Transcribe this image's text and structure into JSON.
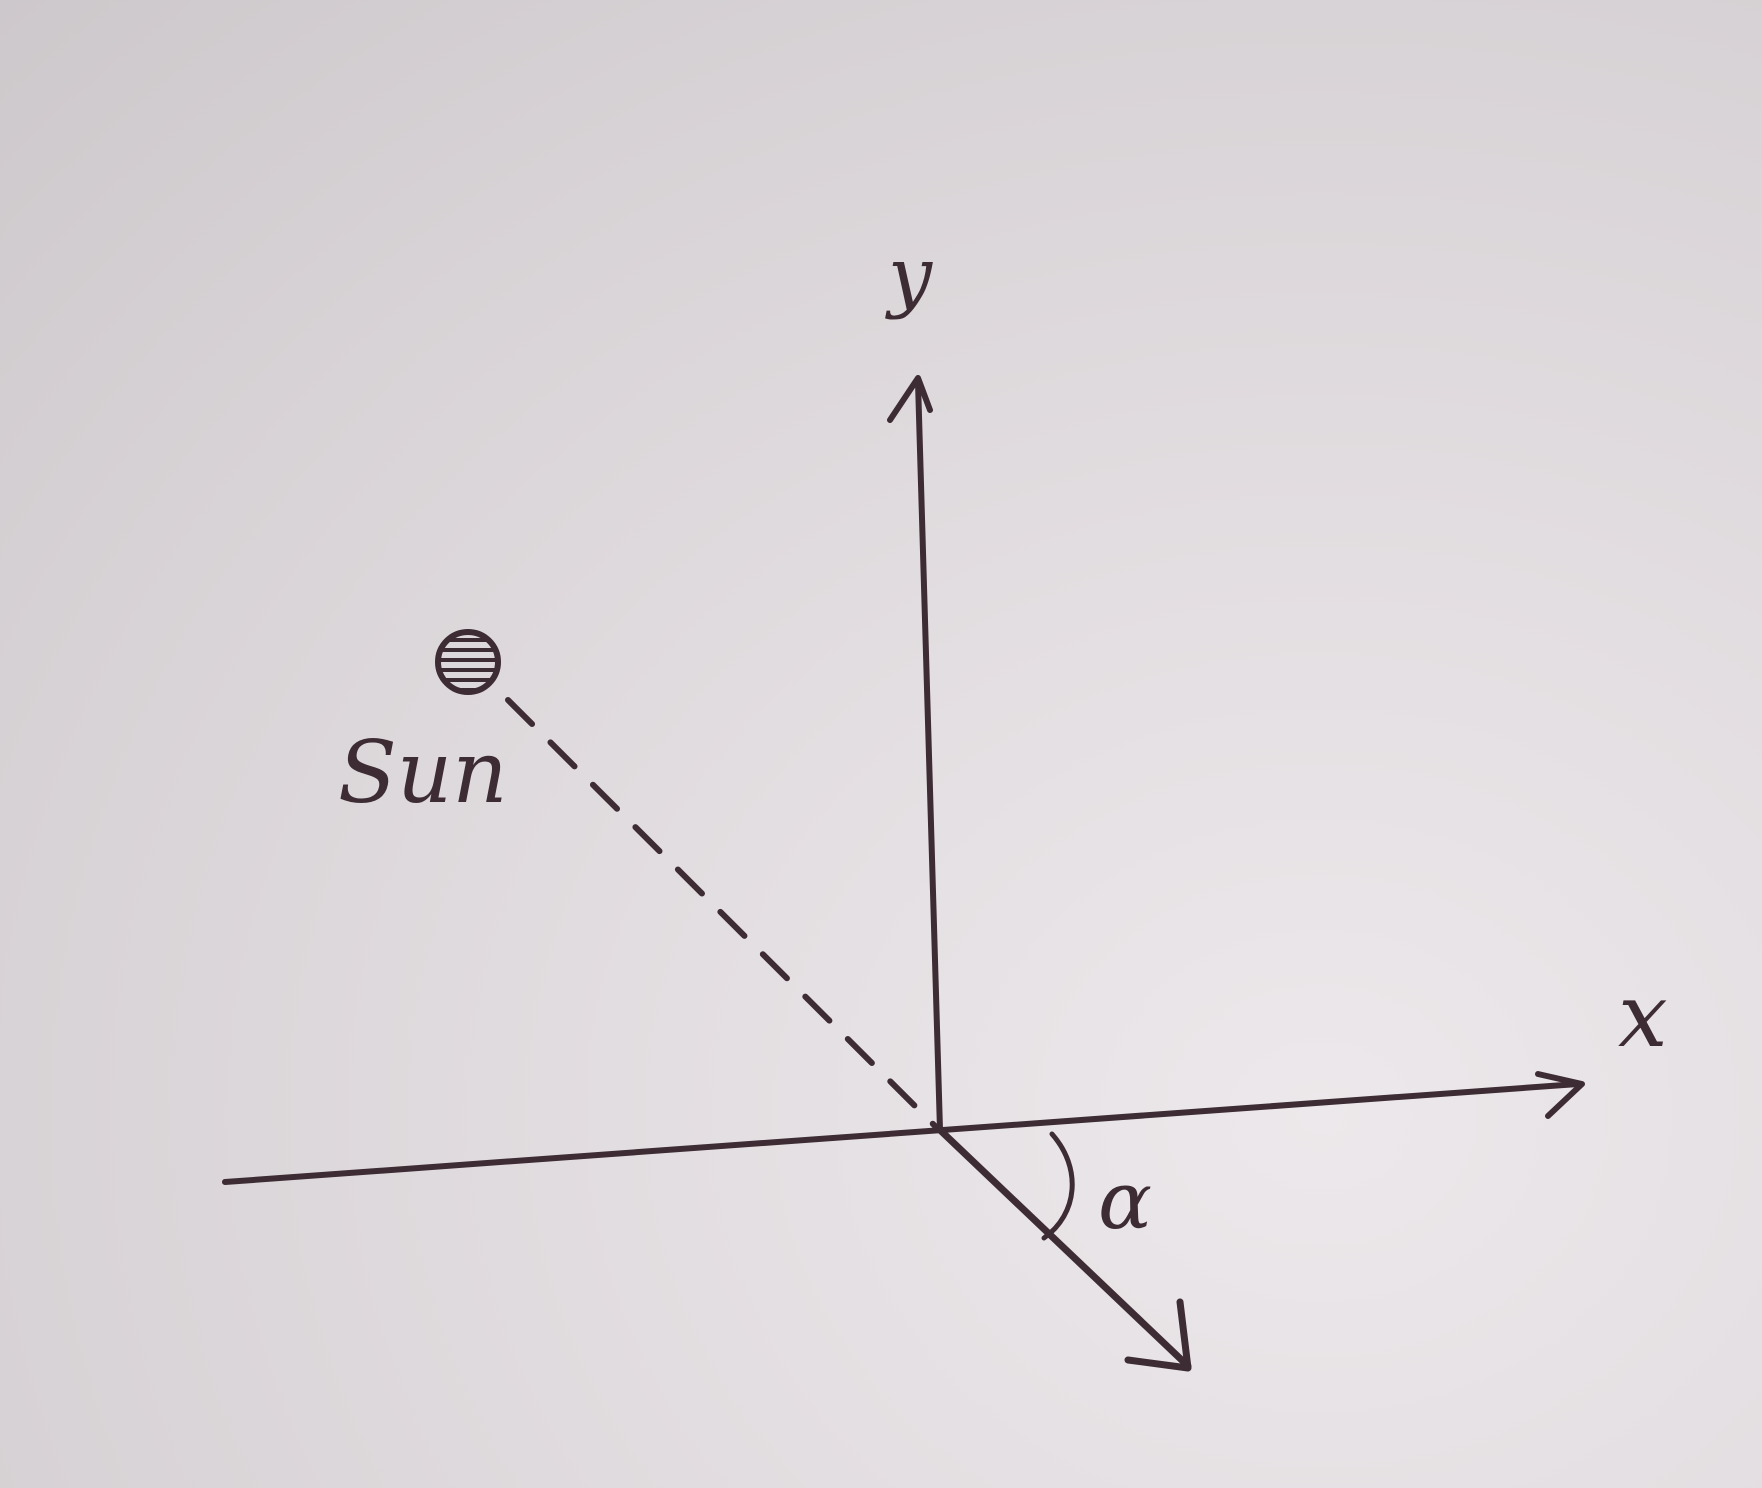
{
  "labels": {
    "y_axis": "y",
    "x_axis": "x",
    "sun": "Sun",
    "angle": "α"
  },
  "colors": {
    "paper": "#e3dee1",
    "ink": "#3d2c33"
  },
  "icons": {
    "sun": "hatched-circle"
  }
}
